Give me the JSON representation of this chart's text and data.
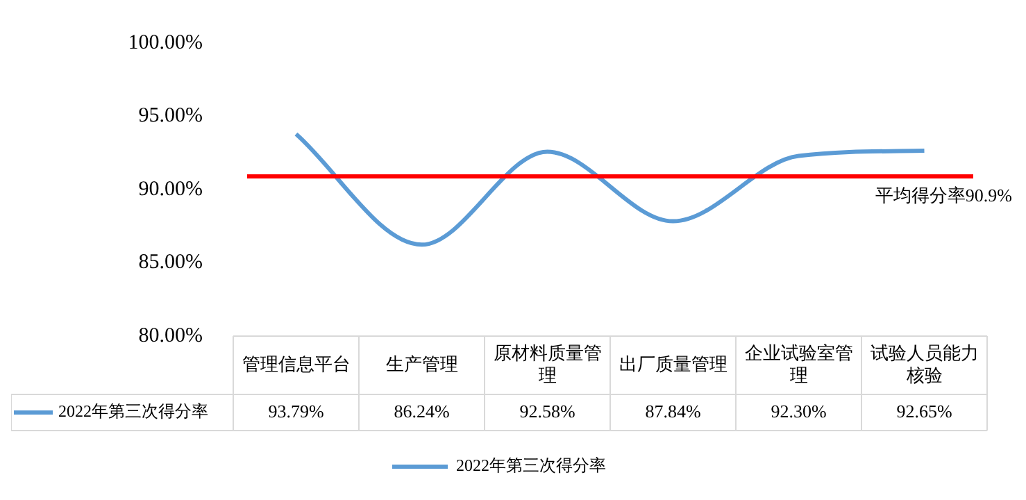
{
  "chart_data": {
    "type": "line",
    "categories": [
      "管理信息平台",
      "生产管理",
      "原材料质量管理",
      "出厂质量管理",
      "企业试验室管理",
      "试验人员能力核验"
    ],
    "series": [
      {
        "name": "2022年第三次得分率",
        "color": "#5b9bd5",
        "values": [
          93.79,
          86.24,
          92.58,
          87.84,
          92.3,
          92.65
        ]
      }
    ],
    "value_labels": [
      "93.79%",
      "86.24%",
      "92.58%",
      "87.84%",
      "92.30%",
      "92.65%"
    ],
    "ylim": [
      80,
      100
    ],
    "yticks": [
      {
        "value": 80,
        "label": "80.00%"
      },
      {
        "value": 85,
        "label": "85.00%"
      },
      {
        "value": 90,
        "label": "90.00%"
      },
      {
        "value": 95,
        "label": "95.00%"
      },
      {
        "value": 100,
        "label": "100.00%"
      }
    ],
    "ref_lines": [
      {
        "axis": "y",
        "value": 90.9,
        "label": "平均得分率90.9%",
        "color": "#ff0000"
      }
    ],
    "grid": false,
    "legend": "bottom",
    "marker": "none",
    "line_style": "solid"
  }
}
